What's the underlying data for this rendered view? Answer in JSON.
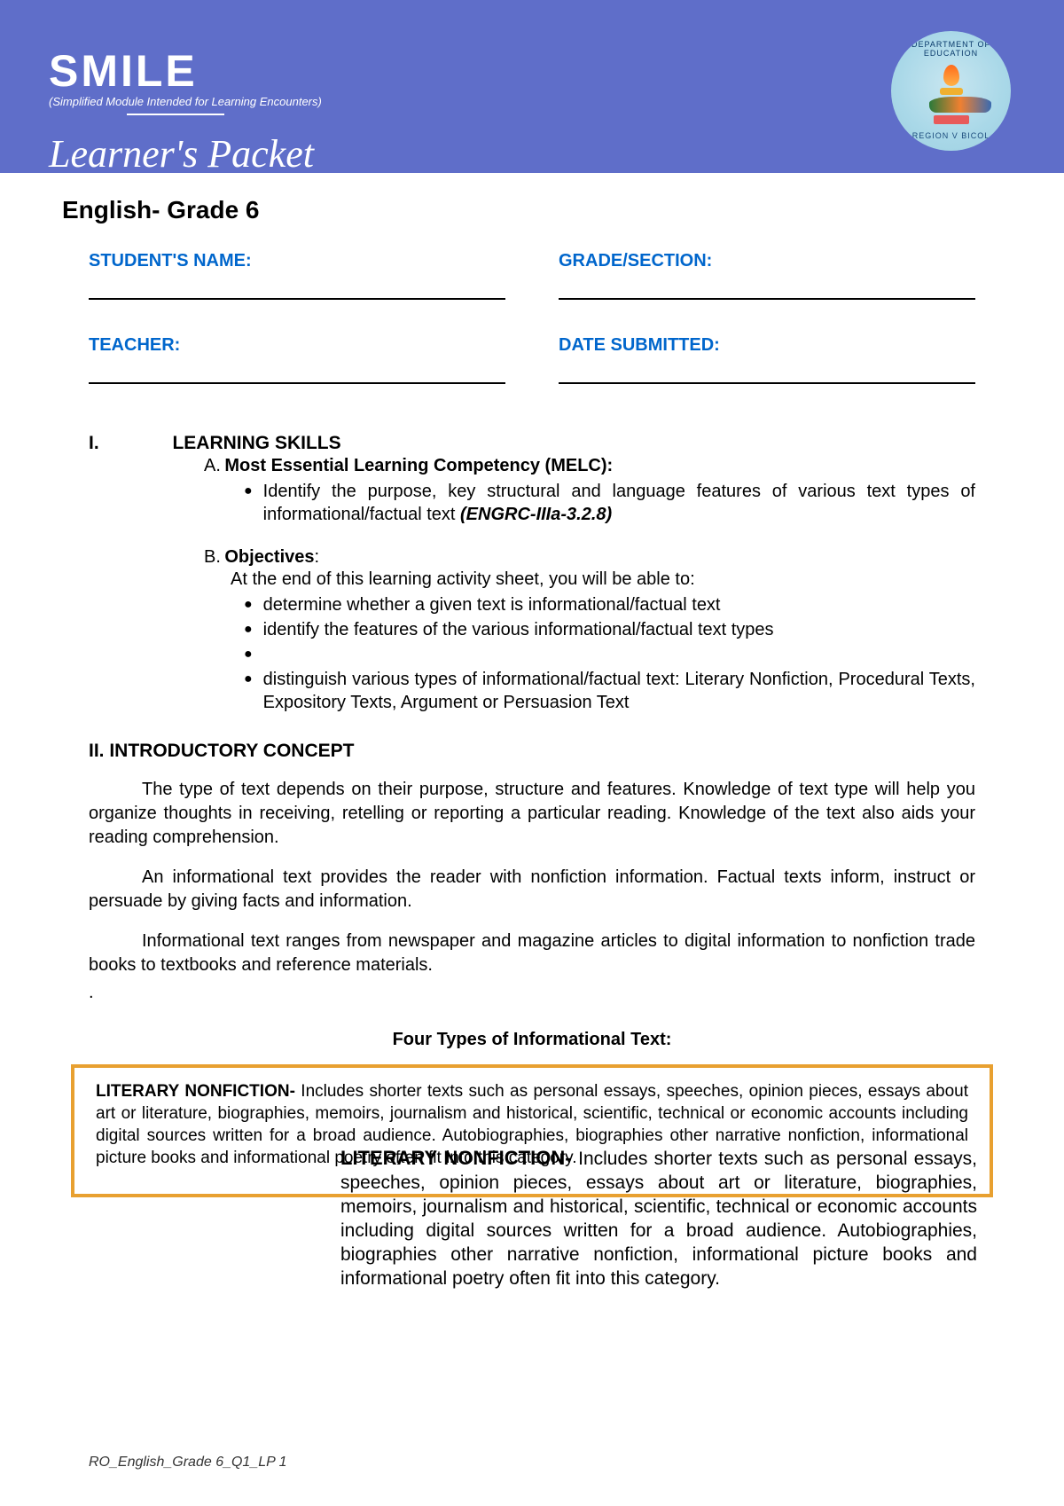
{
  "banner": {
    "smile": "SMILE",
    "smile_sub": "(Simplified Module Intended for Learning Encounters)",
    "packet": "Learner's Packet",
    "bg_color": "#5f6ec9",
    "seal_top": "DEPARTMENT OF EDUCATION",
    "seal_bottom": "REGION V BICOL"
  },
  "subject": "English- Grade 6",
  "fields": {
    "student": "STUDENT'S NAME:",
    "grade": "GRADE/SECTION:",
    "teacher": "TEACHER:",
    "date": "DATE SUBMITTED:"
  },
  "section1": {
    "roman": "I.",
    "title": "LEARNING SKILLS",
    "a_letter": "A.",
    "a_title": "Most Essential Learning Competency (MELC):",
    "a_bullet": "Identify the purpose, key structural and language features of various text types of informational/factual text ",
    "a_code": "(ENGRC-IIIa-3.2.8)",
    "b_letter": "B.",
    "b_title": "Objectives",
    "b_colon": ":",
    "b_intro": "At the end of this learning activity sheet, you will be able to:",
    "b1": "determine whether a given text is informational/factual text",
    "b2": "identify the features of the various informational/factual text types",
    "b3": "",
    "b4": "distinguish various types of informational/factual text: Literary Nonfiction, Procedural Texts, Expository Texts, Argument or Persuasion Text"
  },
  "section2": {
    "title": "II. INTRODUCTORY CONCEPT",
    "p1": "The type of text depends on their purpose, structure and features. Knowledge of text type will help you organize thoughts in receiving, retelling or reporting a particular reading. Knowledge of the text also aids your reading comprehension.",
    "p2": "An informational text provides the reader with nonfiction information. Factual texts inform, instruct or persuade by giving facts and information.",
    "p3": "Informational text ranges from newspaper and magazine articles to digital information to nonfiction trade books to textbooks and reference materials.",
    "four": "Four Types of Informational Text:"
  },
  "box": {
    "title": "LITERARY NONFICTION- ",
    "body": "Includes shorter texts such as personal essays, speeches, opinion pieces, essays about art or literature, biographies, memoirs, journalism and historical, scientific, technical or economic accounts including digital sources written for a broad audience. Autobiographies, biographies other narrative nonfiction, informational picture books and informational poetry often fit into this category.",
    "border_color": "#e8a030"
  },
  "overlay": {
    "title": "LITERARY NONFICTION- ",
    "body": "Includes shorter texts such as personal essays, speeches, opinion pieces, essays about art or literature, biographies, memoirs, journalism and historical, scientific, technical or economic accounts including digital sources written for a broad audience. Autobiographies, biographies other narrative nonfiction, informational picture books and informational poetry often fit into this category."
  },
  "footer": "RO_English_Grade 6_Q1_LP 1",
  "colors": {
    "label_blue": "#0066cc",
    "text": "#000000"
  }
}
